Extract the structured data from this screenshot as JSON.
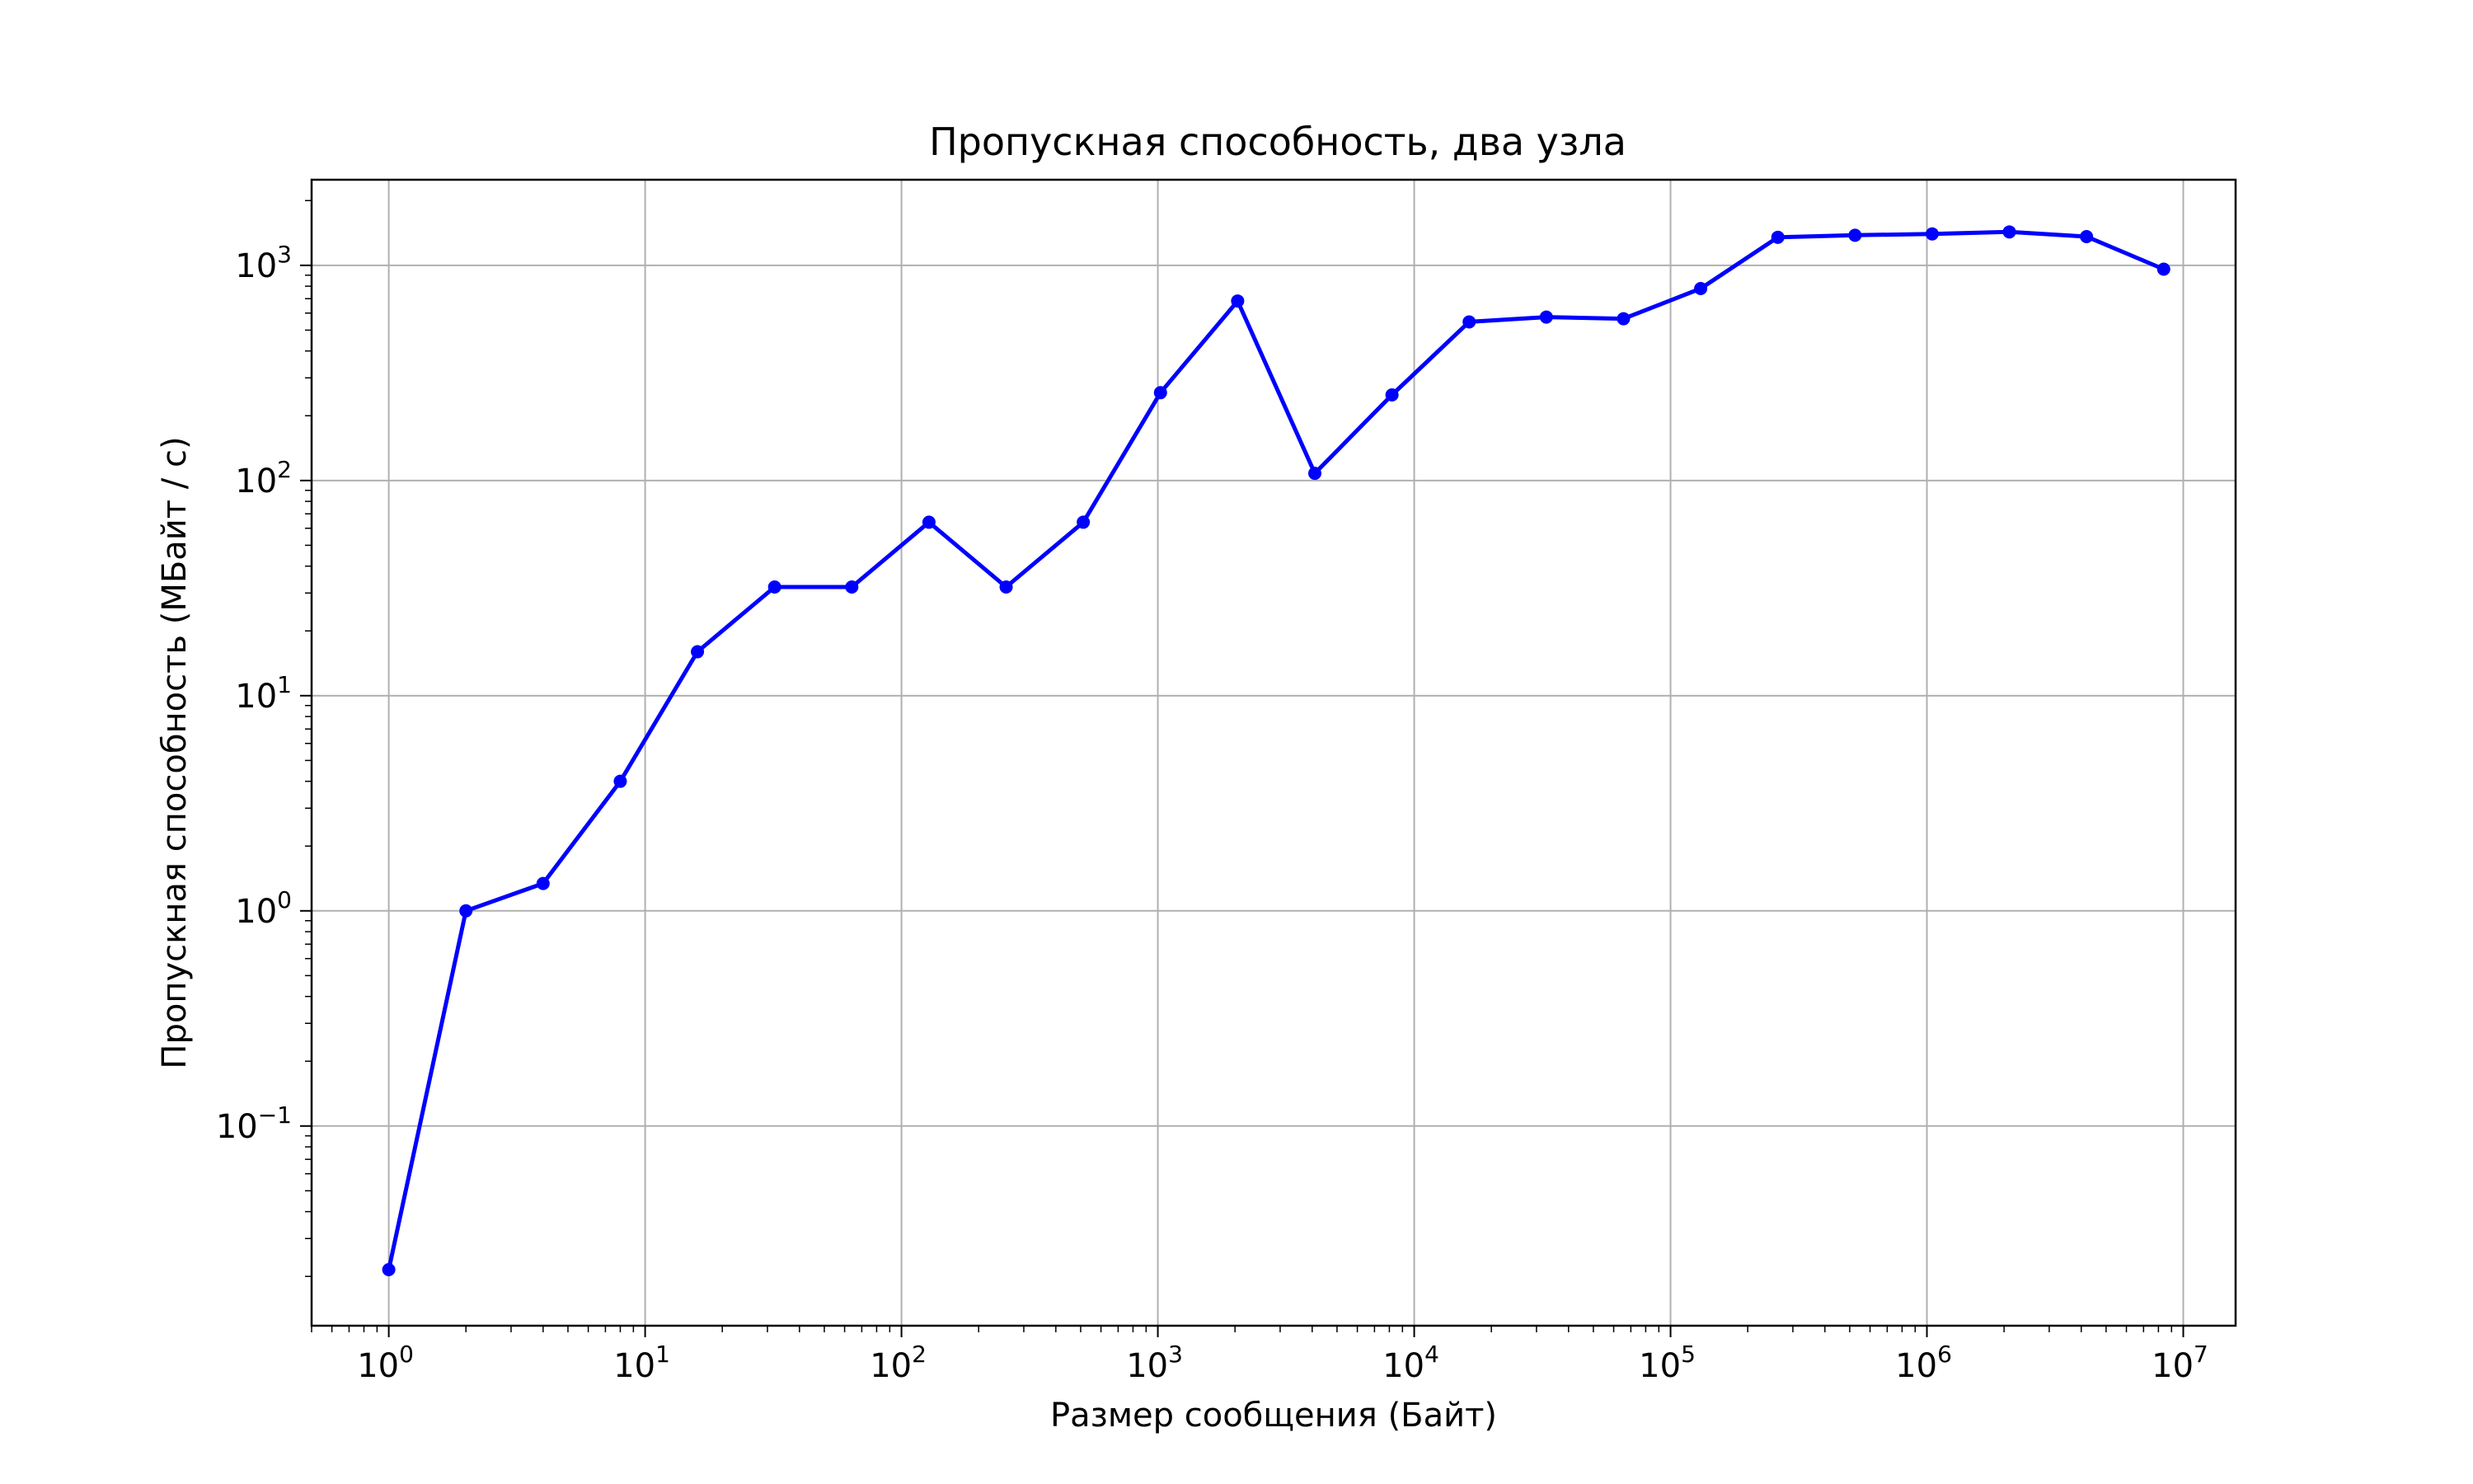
{
  "chart_data": {
    "type": "line",
    "title": "Пропускная способность, два узла",
    "xlabel": "Размер сообщения (Байт)",
    "ylabel": "Пропускная способность (МБайт / с)",
    "xscale": "log",
    "yscale": "log",
    "xlim": [
      0.5,
      16000000
    ],
    "ylim": [
      0.0118,
      2500
    ],
    "grid": true,
    "x_ticks": [
      {
        "base": "10",
        "exp": "0",
        "value": 1
      },
      {
        "base": "10",
        "exp": "1",
        "value": 10
      },
      {
        "base": "10",
        "exp": "2",
        "value": 100
      },
      {
        "base": "10",
        "exp": "3",
        "value": 1000
      },
      {
        "base": "10",
        "exp": "4",
        "value": 10000
      },
      {
        "base": "10",
        "exp": "5",
        "value": 100000
      },
      {
        "base": "10",
        "exp": "6",
        "value": 1000000
      },
      {
        "base": "10",
        "exp": "7",
        "value": 10000000
      }
    ],
    "y_ticks": [
      {
        "base": "10",
        "exp": "−1",
        "value": 0.1
      },
      {
        "base": "10",
        "exp": "0",
        "value": 1
      },
      {
        "base": "10",
        "exp": "1",
        "value": 10
      },
      {
        "base": "10",
        "exp": "2",
        "value": 100
      },
      {
        "base": "10",
        "exp": "3",
        "value": 1000
      }
    ],
    "series": [
      {
        "color": "#0000ff",
        "marker": "circle",
        "x": [
          1,
          2,
          4,
          8,
          16,
          32,
          64,
          128,
          256,
          512,
          1024,
          2048,
          4096,
          8192,
          16384,
          32768,
          65536,
          131072,
          262144,
          524288,
          1048576,
          2097152,
          4194304,
          8388608
        ],
        "y": [
          0.0215,
          1.0,
          1.34,
          4.0,
          16.0,
          32.0,
          32.0,
          64.0,
          32.0,
          64.0,
          256.0,
          683.0,
          108.0,
          250.0,
          546.0,
          575.0,
          565.0,
          780.0,
          1350.0,
          1380.0,
          1400.0,
          1430.0,
          1360.0,
          960.0
        ]
      }
    ]
  }
}
